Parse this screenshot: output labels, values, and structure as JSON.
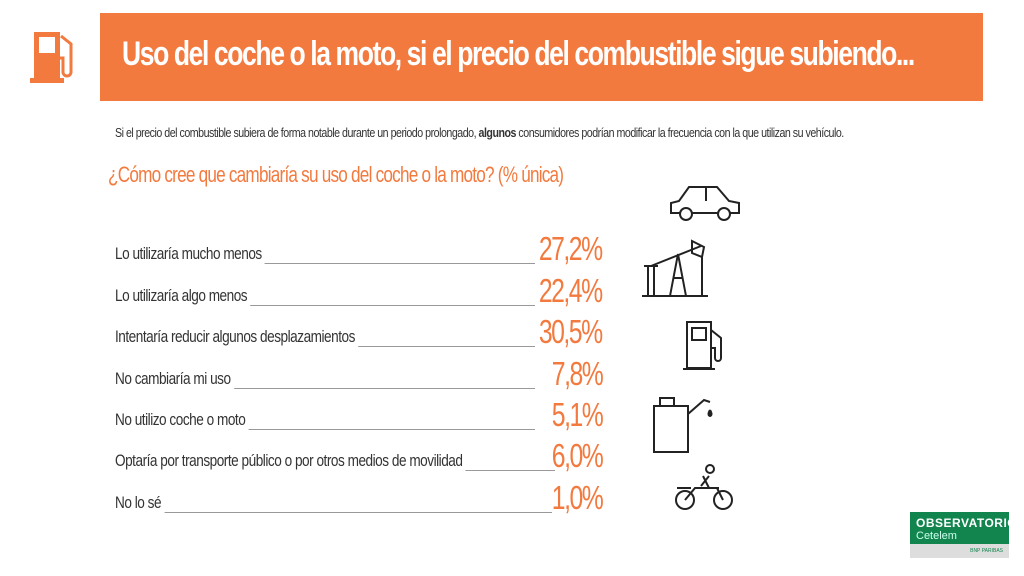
{
  "header": {
    "title": "Uso del coche o la moto, si el precio del combustible sigue subiendo..."
  },
  "intro": {
    "before": "Si el precio del combustible subiera de forma notable durante un periodo prolongado, ",
    "bold": "algunos",
    "after": " consumidores podrían modificar la frecuencia con la que utilizan su vehículo."
  },
  "question": "¿Cómo cree que cambiaría su uso del coche o la moto? (% única)",
  "rows": [
    {
      "label": "Lo utilizaría mucho menos",
      "value": "27,2%"
    },
    {
      "label": "Lo utilizaría algo menos",
      "value": "22,4%"
    },
    {
      "label": "Intentaría reducir algunos desplazamientos",
      "value": "30,5%"
    },
    {
      "label": "No cambiaría mi uso",
      "value": "7,8%"
    },
    {
      "label": "No utilizo coche o moto",
      "value": "5,1%"
    },
    {
      "label": "Optaría por transporte público o por otros medios de movilidad",
      "value": "6,0%"
    },
    {
      "label": "No lo sé",
      "value": "1,0%"
    }
  ],
  "logo": {
    "line1": "OBSERVATORIO",
    "line2": "Cetelem",
    "line3": "BNP PARIBAS"
  },
  "colors": {
    "accent": "#f37a3f",
    "brand": "#12854f"
  }
}
